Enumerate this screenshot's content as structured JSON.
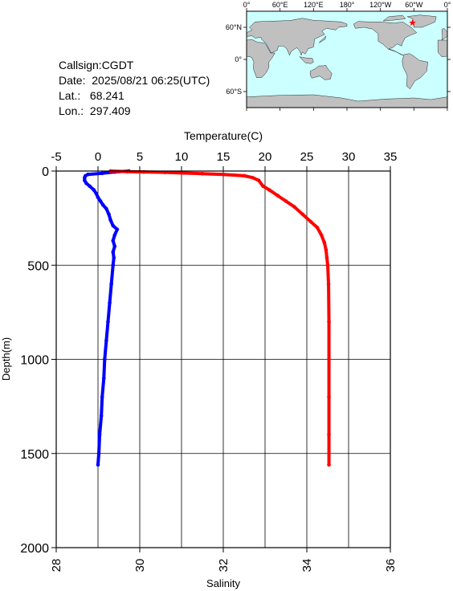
{
  "info": {
    "callsign": "Callsign:CGDT",
    "date": "Date:  2025/08/21 06:25(UTC)",
    "lat": "Lat.:   68.241",
    "lon": "Lon.:  297.409"
  },
  "map": {
    "lon_ticks": [
      "0°",
      "60°E",
      "120°E",
      "180°",
      "120°W",
      "60°W",
      "0°"
    ],
    "lat_ticks": [
      "60°N",
      "0°",
      "60°S"
    ],
    "ocean_color": "#ccffff",
    "land_color": "#c0c0c0",
    "marker_color": "#ff0000",
    "marker_lon": 297.409,
    "marker_lat": 68.241
  },
  "chart_data": {
    "type": "line",
    "top_axis_label": "Temperature(C)",
    "bottom_axis_label": "Salinity",
    "y_label": "Depth(m)",
    "temperature_range": [
      -5,
      35
    ],
    "temperature_ticks": [
      -5,
      0,
      5,
      10,
      15,
      20,
      25,
      30,
      35
    ],
    "salinity_range": [
      28,
      36
    ],
    "salinity_ticks": [
      28,
      30,
      32,
      34,
      36
    ],
    "depth_range": [
      0,
      2000
    ],
    "depth_ticks": [
      0,
      500,
      1000,
      1500,
      2000
    ],
    "grid": true,
    "series": [
      {
        "name": "",
        "axis": "top",
        "color": "#0000ff",
        "points": [
          [
            3.7,
            0
          ],
          [
            2.0,
            5
          ],
          [
            0.5,
            12
          ],
          [
            -1.2,
            18
          ],
          [
            -1.5,
            25
          ],
          [
            -1.6,
            35
          ],
          [
            -1.6,
            50
          ],
          [
            -1.4,
            65
          ],
          [
            -1.0,
            80
          ],
          [
            -0.5,
            100
          ],
          [
            -0.2,
            120
          ],
          [
            0.0,
            140
          ],
          [
            0.3,
            160
          ],
          [
            0.6,
            180
          ],
          [
            1.0,
            200
          ],
          [
            1.3,
            230
          ],
          [
            1.5,
            260
          ],
          [
            1.8,
            290
          ],
          [
            2.3,
            310
          ],
          [
            2.0,
            340
          ],
          [
            1.8,
            370
          ],
          [
            2.0,
            400
          ],
          [
            1.8,
            430
          ],
          [
            1.9,
            460
          ],
          [
            1.8,
            500
          ],
          [
            1.6,
            600
          ],
          [
            1.4,
            700
          ],
          [
            1.2,
            800
          ],
          [
            1.0,
            900
          ],
          [
            0.8,
            1000
          ],
          [
            0.7,
            1100
          ],
          [
            0.5,
            1200
          ],
          [
            0.4,
            1300
          ],
          [
            0.2,
            1400
          ],
          [
            0.1,
            1500
          ],
          [
            0.0,
            1560
          ]
        ]
      },
      {
        "name": "",
        "axis": "bottom",
        "color": "#ff0000",
        "points": [
          [
            29.3,
            0
          ],
          [
            29.7,
            3
          ],
          [
            30.1,
            5
          ],
          [
            30.6,
            7
          ],
          [
            31.0,
            10
          ],
          [
            31.5,
            14
          ],
          [
            32.0,
            18
          ],
          [
            32.5,
            25
          ],
          [
            32.7,
            35
          ],
          [
            32.85,
            50
          ],
          [
            32.95,
            80
          ],
          [
            33.1,
            100
          ],
          [
            33.3,
            130
          ],
          [
            33.5,
            160
          ],
          [
            33.7,
            190
          ],
          [
            33.9,
            230
          ],
          [
            34.1,
            270
          ],
          [
            34.25,
            300
          ],
          [
            34.35,
            340
          ],
          [
            34.42,
            380
          ],
          [
            34.46,
            420
          ],
          [
            34.48,
            460
          ],
          [
            34.5,
            500
          ],
          [
            34.52,
            600
          ],
          [
            34.53,
            800
          ],
          [
            34.53,
            1000
          ],
          [
            34.53,
            1200
          ],
          [
            34.53,
            1400
          ],
          [
            34.53,
            1560
          ]
        ]
      }
    ]
  }
}
